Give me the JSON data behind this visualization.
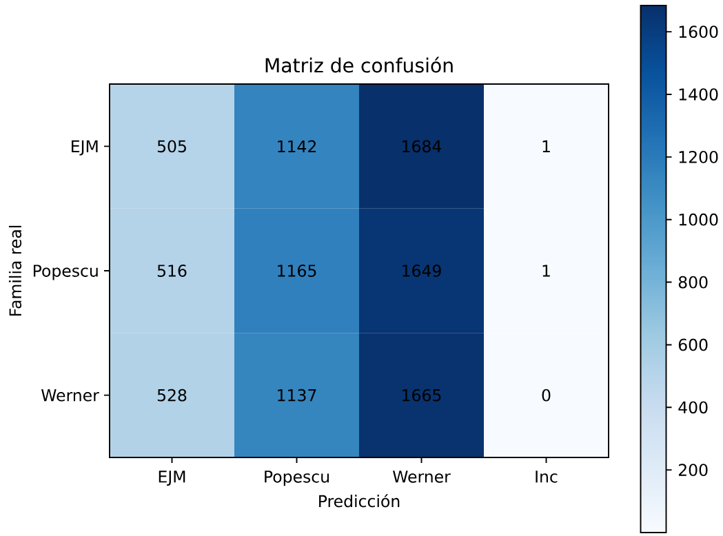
{
  "chart_data": {
    "type": "heatmap",
    "title": "Matriz de confusión",
    "xlabel": "Predicción",
    "ylabel": "Familia real",
    "categories": [
      "EJM",
      "Popescu",
      "Werner",
      "Inc"
    ],
    "y_categories": [
      "EJM",
      "Popescu",
      "Werner"
    ],
    "cells": [
      [
        505,
        1142,
        1684,
        1
      ],
      [
        516,
        1165,
        1649,
        1
      ],
      [
        528,
        1137,
        1665,
        0
      ]
    ],
    "clim": [
      0,
      1684
    ],
    "cticks": [
      200,
      400,
      600,
      800,
      1000,
      1200,
      1400,
      1600
    ],
    "data_labels": true
  }
}
